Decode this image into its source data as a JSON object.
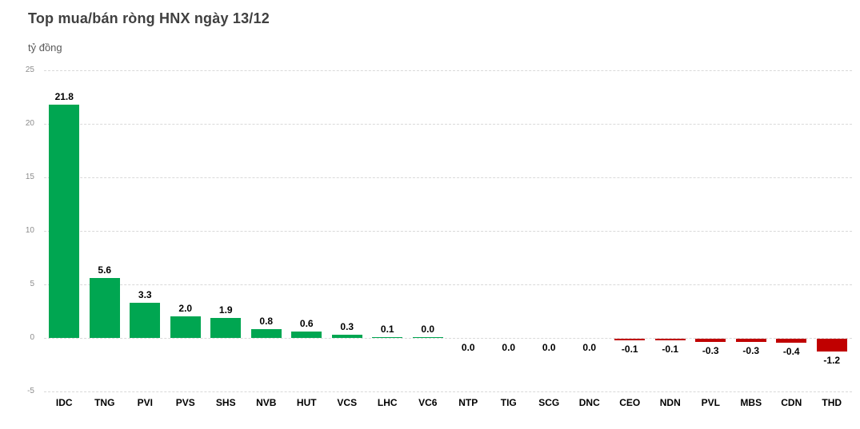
{
  "chart": {
    "title": "Top mua/bán ròng HNX ngày 13/12",
    "unit_label": "tỷ đồng"
  },
  "chart_data": {
    "type": "bar",
    "title": "Top mua/bán ròng HNX ngày 13/12",
    "xlabel": "",
    "ylabel": "tỷ đồng",
    "ylim": [
      -5,
      25
    ],
    "yticks": [
      25,
      20,
      15,
      10,
      5,
      0,
      -5
    ],
    "grid": "horizontal-dashed",
    "legend": "none",
    "categories": [
      "IDC",
      "TNG",
      "PVI",
      "PVS",
      "SHS",
      "NVB",
      "HUT",
      "VCS",
      "LHC",
      "VC6",
      "NTP",
      "TIG",
      "SCG",
      "DNC",
      "CEO",
      "NDN",
      "PVL",
      "MBS",
      "CDN",
      "THD"
    ],
    "values": [
      21.8,
      5.6,
      3.3,
      2.0,
      1.9,
      0.8,
      0.6,
      0.3,
      0.1,
      0.0,
      0.0,
      0.0,
      0.0,
      0.0,
      -0.1,
      -0.1,
      -0.3,
      -0.3,
      -0.4,
      -1.2
    ],
    "value_labels": [
      "21.8",
      "5.6",
      "3.3",
      "2.0",
      "1.9",
      "0.8",
      "0.6",
      "0.3",
      "0.1",
      "0.0",
      "0.0",
      "0.0",
      "0.0",
      "0.0",
      "-0.1",
      "-0.1",
      "-0.3",
      "-0.3",
      "-0.4",
      "-1.2"
    ],
    "label_side": [
      "above",
      "above",
      "above",
      "above",
      "above",
      "above",
      "above",
      "above",
      "above",
      "above",
      "below",
      "below",
      "below",
      "below",
      "below",
      "below",
      "below",
      "below",
      "below",
      "below"
    ],
    "has_visible_bar": [
      true,
      true,
      true,
      true,
      true,
      true,
      true,
      true,
      true,
      true,
      false,
      false,
      false,
      false,
      true,
      true,
      true,
      true,
      true,
      true
    ],
    "colors": {
      "positive_bar": "#00A651",
      "negative_bar": "#C00000",
      "gridline": "#D9D9D9",
      "title_text": "#404040",
      "unit_text": "#595959",
      "ytick_text": "#8C8C8C",
      "label_text": "#000000",
      "background": "#FFFFFF"
    }
  }
}
